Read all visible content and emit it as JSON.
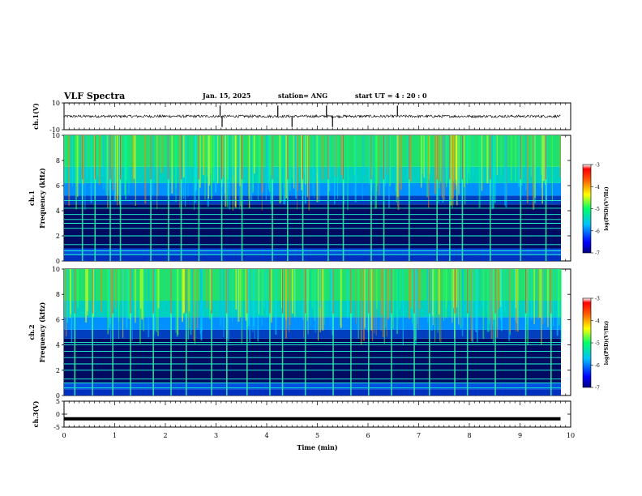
{
  "header": {
    "title": "VLF Spectra",
    "date": "Jan. 15, 2025",
    "station": "station= ANG",
    "start": "start UT = 4 : 20 : 0"
  },
  "chart_data": [
    {
      "type": "line",
      "panel": "ch1-waveform",
      "ylabel": "ch.1(V)",
      "ylim": [
        -10,
        10
      ],
      "yticks": [
        10,
        -10
      ],
      "xlim": [
        0,
        10
      ],
      "series": [
        {
          "baseline": 0,
          "noise_amplitude": 1,
          "spikes_x": [
            3.08,
            3.12,
            4.22,
            4.5,
            5.18,
            5.3,
            6.58
          ]
        }
      ]
    },
    {
      "type": "heatmap",
      "panel": "ch1-spectrogram",
      "ylabel": "ch.1 Frequency (kHz)",
      "ylim": [
        0,
        10
      ],
      "yticks": [
        0,
        2,
        4,
        6,
        8,
        10
      ],
      "xlim": [
        0,
        10
      ],
      "colorbar": {
        "label": "log(PSD)(V²/Hz)",
        "range": [
          -7,
          -3
        ],
        "ticks": [
          "-3",
          "-4",
          "-5",
          "-6",
          "-7"
        ]
      },
      "horizontal_lines_khz": [
        0.5,
        0.8,
        1.3,
        2.0,
        2.6,
        3.0,
        3.3,
        3.7,
        4.2,
        4.8
      ],
      "sferic_x": [
        0.35,
        0.6,
        0.9,
        1.1,
        1.7,
        2.05,
        2.3,
        2.65,
        3.1,
        3.5,
        4.1,
        4.4,
        4.7,
        5.2,
        5.5,
        6.05,
        6.3,
        6.8,
        7.35,
        7.6,
        7.85,
        8.4,
        9.0,
        9.5
      ]
    },
    {
      "type": "heatmap",
      "panel": "ch2-spectrogram",
      "ylabel": "ch.2 Frequency (kHz)",
      "ylim": [
        0,
        10
      ],
      "yticks": [
        0,
        2,
        4,
        6,
        8,
        10
      ],
      "xlim": [
        0,
        10
      ],
      "colorbar": {
        "label": "log(PSD)(V²/Hz)",
        "range": [
          -7,
          -3
        ],
        "ticks": [
          "-3",
          "-4",
          "-5",
          "-6",
          "-7"
        ]
      },
      "horizontal_lines_khz": [
        0.6,
        1.0,
        1.3,
        2.0,
        2.5,
        3.0,
        3.5,
        4.0,
        4.2
      ],
      "sferic_x": [
        0.2,
        0.55,
        0.95,
        1.3,
        1.75,
        2.1,
        2.4,
        2.9,
        3.2,
        3.6,
        4.05,
        4.3,
        4.75,
        5.3,
        5.65,
        6.0,
        6.45,
        6.9,
        7.2,
        7.7,
        7.95,
        8.5,
        9.1,
        9.6
      ]
    },
    {
      "type": "line",
      "panel": "ch3-waveform",
      "ylabel": "ch.3(V)",
      "ylim": [
        -5,
        5
      ],
      "yticks": [
        5,
        0,
        -5
      ],
      "xlim": [
        0,
        10
      ],
      "xlabel": "Time (min)",
      "xticks": [
        0,
        1,
        2,
        3,
        4,
        5,
        6,
        7,
        8,
        9,
        10
      ],
      "series": [
        {
          "constant": -1.8,
          "end_x": 9.8
        }
      ]
    }
  ]
}
